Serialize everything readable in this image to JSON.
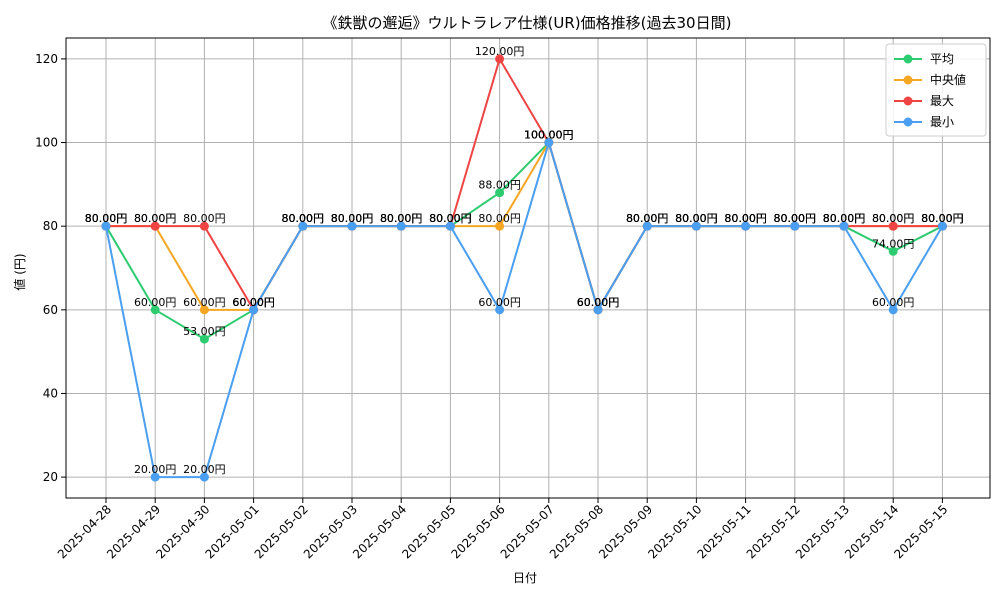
{
  "chart_data": {
    "type": "line",
    "title": "《鉄獣の邂逅》ウルトラレア仕様(UR)価格推移(過去30日間)",
    "xlabel": "日付",
    "ylabel": "値 (円)",
    "ylim": [
      15,
      125
    ],
    "yticks": [
      20,
      40,
      60,
      80,
      100,
      120
    ],
    "grid": true,
    "legend_position": "top-right",
    "categories": [
      "2025-04-28",
      "2025-04-29",
      "2025-04-30",
      "2025-05-01",
      "2025-05-02",
      "2025-05-03",
      "2025-05-04",
      "2025-05-05",
      "2025-05-06",
      "2025-05-07",
      "2025-05-08",
      "2025-05-09",
      "2025-05-10",
      "2025-05-11",
      "2025-05-12",
      "2025-05-13",
      "2025-05-14",
      "2025-05-15"
    ],
    "series": [
      {
        "name": "平均",
        "color": "#2ecc71",
        "values": [
          80,
          60,
          53,
          60,
          80,
          80,
          80,
          80,
          88,
          100,
          60,
          80,
          80,
          80,
          80,
          80,
          74,
          80
        ]
      },
      {
        "name": "中央値",
        "color": "#f5a623",
        "values": [
          80,
          80,
          60,
          60,
          80,
          80,
          80,
          80,
          80,
          100,
          60,
          80,
          80,
          80,
          80,
          80,
          80,
          80
        ]
      },
      {
        "name": "最大",
        "color": "#ef4444",
        "values": [
          80,
          80,
          80,
          60,
          80,
          80,
          80,
          80,
          120,
          100,
          60,
          80,
          80,
          80,
          80,
          80,
          80,
          80
        ]
      },
      {
        "name": "最小",
        "color": "#4a9ff0",
        "values": [
          80,
          20,
          20,
          60,
          80,
          80,
          80,
          80,
          60,
          100,
          60,
          80,
          80,
          80,
          80,
          80,
          60,
          80
        ]
      }
    ],
    "value_suffix": "円"
  }
}
